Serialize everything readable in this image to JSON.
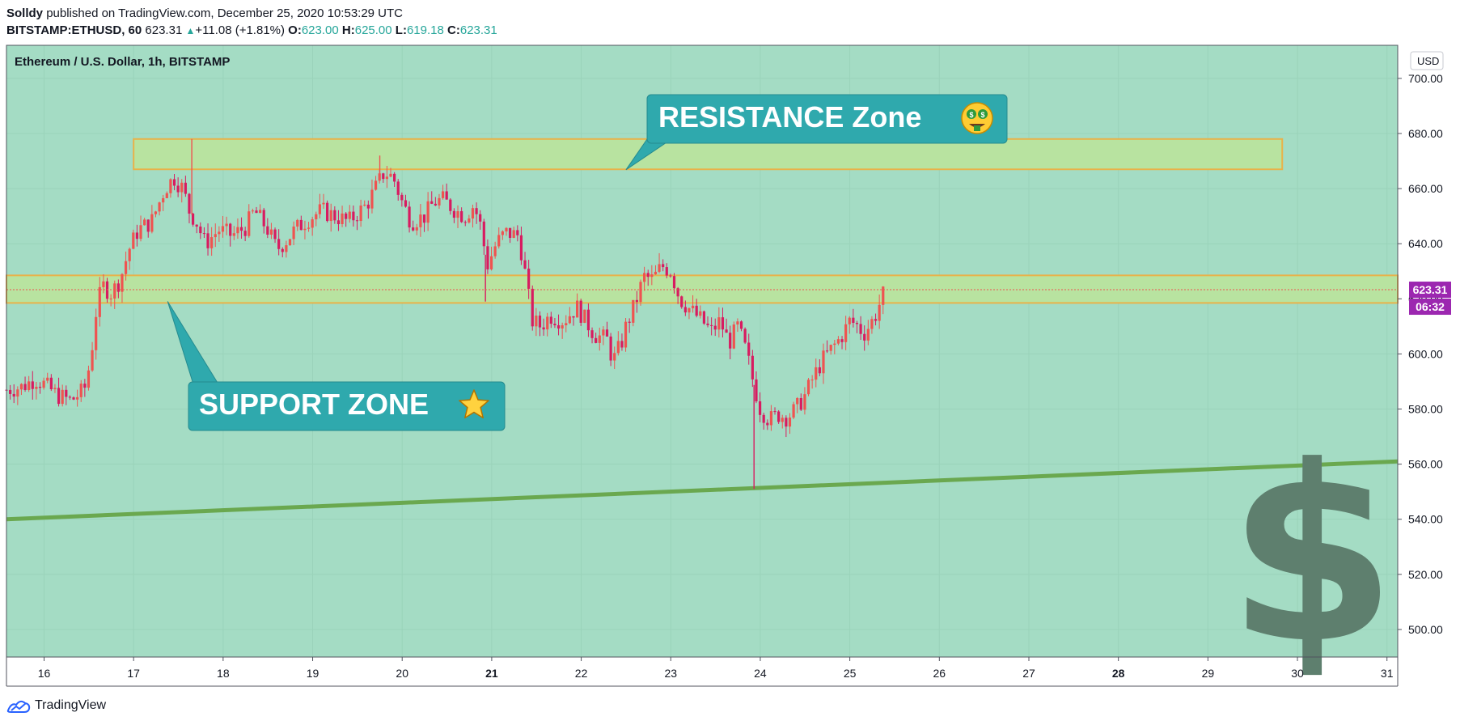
{
  "header": {
    "author": "Solldy",
    "published_text": "published on TradingView.com, December 25, 2020 10:53:29 UTC",
    "symbol": "BITSTAMP:ETHUSD, 60",
    "last": "623.31",
    "change": "+11.08 (+1.81%)",
    "o_label": "O:",
    "o_value": "623.00",
    "h_label": "H:",
    "h_value": "625.00",
    "l_label": "L:",
    "l_value": "619.18",
    "c_label": "C:",
    "c_value": "623.31"
  },
  "pane_title": "Ethereum / U.S. Dollar, 1h, BITSTAMP",
  "currency_label": "USD",
  "price_tag": "623.31",
  "countdown_tag": "06:32",
  "footer_brand": "TradingView",
  "colors": {
    "pane_bg": "#a4dcc4",
    "zone_fill": "#b8e3a0",
    "zone_border": "#e8b24a",
    "callout": "#2fa9ad",
    "trendline": "#6aa84f",
    "bull": "#ef5350",
    "bear": "#d81b60",
    "tag": "#9c27b0",
    "dollar": "#5e7f6e"
  },
  "chart_data": {
    "type": "candlestick",
    "title": "Ethereum / U.S. Dollar, 1h, BITSTAMP",
    "x_ticks": [
      "16",
      "17",
      "18",
      "19",
      "20",
      "21",
      "22",
      "23",
      "24",
      "25",
      "26",
      "27",
      "28",
      "29",
      "30",
      "31"
    ],
    "y_ticks": [
      500,
      520,
      540,
      560,
      580,
      600,
      620,
      640,
      660,
      680,
      700
    ],
    "y_tick_labels": [
      "500.00",
      "520.00",
      "540.00",
      "560.00",
      "580.00",
      "600.00",
      "620.00",
      "640.00",
      "660.00",
      "680.00",
      "700.00"
    ],
    "ylim": [
      490,
      712
    ],
    "xlim_days": [
      15.58,
      31.12
    ],
    "price_path": [
      [
        15.58,
        587
      ],
      [
        15.75,
        588
      ],
      [
        15.9,
        591
      ],
      [
        16.0,
        589
      ],
      [
        16.15,
        585
      ],
      [
        16.3,
        583
      ],
      [
        16.45,
        587
      ],
      [
        16.52,
        598
      ],
      [
        16.58,
        615
      ],
      [
        16.65,
        625
      ],
      [
        16.75,
        622
      ],
      [
        16.85,
        627
      ],
      [
        16.95,
        638
      ],
      [
        17.05,
        645
      ],
      [
        17.2,
        648
      ],
      [
        17.35,
        660
      ],
      [
        17.45,
        664
      ],
      [
        17.55,
        660
      ],
      [
        17.62,
        652
      ],
      [
        17.7,
        648
      ],
      [
        17.8,
        640
      ],
      [
        17.95,
        645
      ],
      [
        18.1,
        643
      ],
      [
        18.25,
        646
      ],
      [
        18.35,
        652
      ],
      [
        18.5,
        645
      ],
      [
        18.6,
        638
      ],
      [
        18.7,
        641
      ],
      [
        18.8,
        645
      ],
      [
        18.95,
        649
      ],
      [
        19.1,
        652
      ],
      [
        19.25,
        650
      ],
      [
        19.4,
        648
      ],
      [
        19.5,
        651
      ],
      [
        19.6,
        654
      ],
      [
        19.7,
        660
      ],
      [
        19.8,
        666
      ],
      [
        19.9,
        664
      ],
      [
        20.0,
        655
      ],
      [
        20.1,
        648
      ],
      [
        20.25,
        650
      ],
      [
        20.35,
        655
      ],
      [
        20.45,
        656
      ],
      [
        20.6,
        652
      ],
      [
        20.7,
        650
      ],
      [
        20.8,
        654
      ],
      [
        20.88,
        646
      ],
      [
        20.95,
        632
      ],
      [
        21.05,
        640
      ],
      [
        21.15,
        644
      ],
      [
        21.3,
        643
      ],
      [
        21.38,
        628
      ],
      [
        21.45,
        612
      ],
      [
        21.55,
        610
      ],
      [
        21.65,
        614
      ],
      [
        21.8,
        612
      ],
      [
        21.95,
        617
      ],
      [
        22.05,
        612
      ],
      [
        22.15,
        607
      ],
      [
        22.3,
        605
      ],
      [
        22.35,
        597
      ],
      [
        22.45,
        604
      ],
      [
        22.5,
        610
      ],
      [
        22.6,
        618
      ],
      [
        22.7,
        628
      ],
      [
        22.8,
        627
      ],
      [
        22.9,
        632
      ],
      [
        23.0,
        630
      ],
      [
        23.1,
        620
      ],
      [
        23.25,
        615
      ],
      [
        23.35,
        612
      ],
      [
        23.45,
        608
      ],
      [
        23.55,
        612
      ],
      [
        23.65,
        604
      ],
      [
        23.75,
        610
      ],
      [
        23.85,
        600
      ],
      [
        23.92,
        590
      ],
      [
        24.0,
        580
      ],
      [
        24.1,
        576
      ],
      [
        24.2,
        578
      ],
      [
        24.3,
        577
      ],
      [
        24.4,
        580
      ],
      [
        24.5,
        585
      ],
      [
        24.6,
        592
      ],
      [
        24.7,
        598
      ],
      [
        24.8,
        602
      ],
      [
        24.9,
        606
      ],
      [
        25.0,
        612
      ],
      [
        25.1,
        610
      ],
      [
        25.15,
        607
      ],
      [
        25.25,
        612
      ],
      [
        25.3,
        615
      ],
      [
        25.35,
        620
      ],
      [
        25.4,
        623.31
      ]
    ],
    "extreme_wicks": [
      [
        17.65,
        678,
        "high"
      ],
      [
        19.75,
        672,
        "high"
      ],
      [
        23.93,
        551,
        "low"
      ],
      [
        20.93,
        619,
        "low"
      ]
    ],
    "resistance_zone": {
      "from": 17.0,
      "to": 29.83,
      "low": 667,
      "high": 678
    },
    "support_zone": {
      "from": 15.58,
      "to": 31.12,
      "low": 618.5,
      "high": 628.5
    },
    "trendline": [
      [
        15.58,
        540
      ],
      [
        31.12,
        561
      ]
    ],
    "last_price": 623.31,
    "annotations": [
      {
        "text": "RESISTANCE Zone",
        "emoji": "money-mouth-face",
        "pointer_to": [
          22.5,
          668
        ]
      },
      {
        "text": "SUPPORT ZONE",
        "emoji": "star",
        "pointer_to": [
          17.38,
          622
        ]
      }
    ]
  }
}
